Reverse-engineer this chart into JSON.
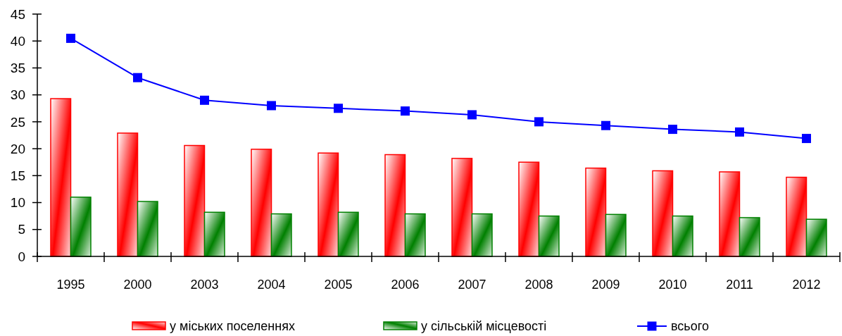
{
  "chart_data": {
    "type": "bar",
    "categories": [
      "1995",
      "2000",
      "2003",
      "2004",
      "2005",
      "2006",
      "2007",
      "2008",
      "2009",
      "2010",
      "2011",
      "2012"
    ],
    "series": [
      {
        "name": "у міських поселеннях",
        "color": "#ff0000",
        "values": [
          29.3,
          22.9,
          20.6,
          19.9,
          19.2,
          18.9,
          18.2,
          17.5,
          16.4,
          15.9,
          15.7,
          14.7
        ]
      },
      {
        "name": "у сільській місцевості",
        "color": "#008000",
        "values": [
          11.0,
          10.2,
          8.2,
          7.9,
          8.2,
          7.9,
          7.9,
          7.5,
          7.8,
          7.5,
          7.2,
          6.9
        ]
      },
      {
        "name": "всього",
        "type": "line",
        "color": "#0000ff",
        "values": [
          40.5,
          33.2,
          29.0,
          28.0,
          27.5,
          27.0,
          26.3,
          25.0,
          24.3,
          23.6,
          23.1,
          21.9
        ]
      }
    ],
    "ylim": [
      0,
      45
    ],
    "yticks": [
      0,
      5,
      10,
      15,
      20,
      25,
      30,
      35,
      40,
      45
    ],
    "marker": "square",
    "legend": "bottom"
  }
}
